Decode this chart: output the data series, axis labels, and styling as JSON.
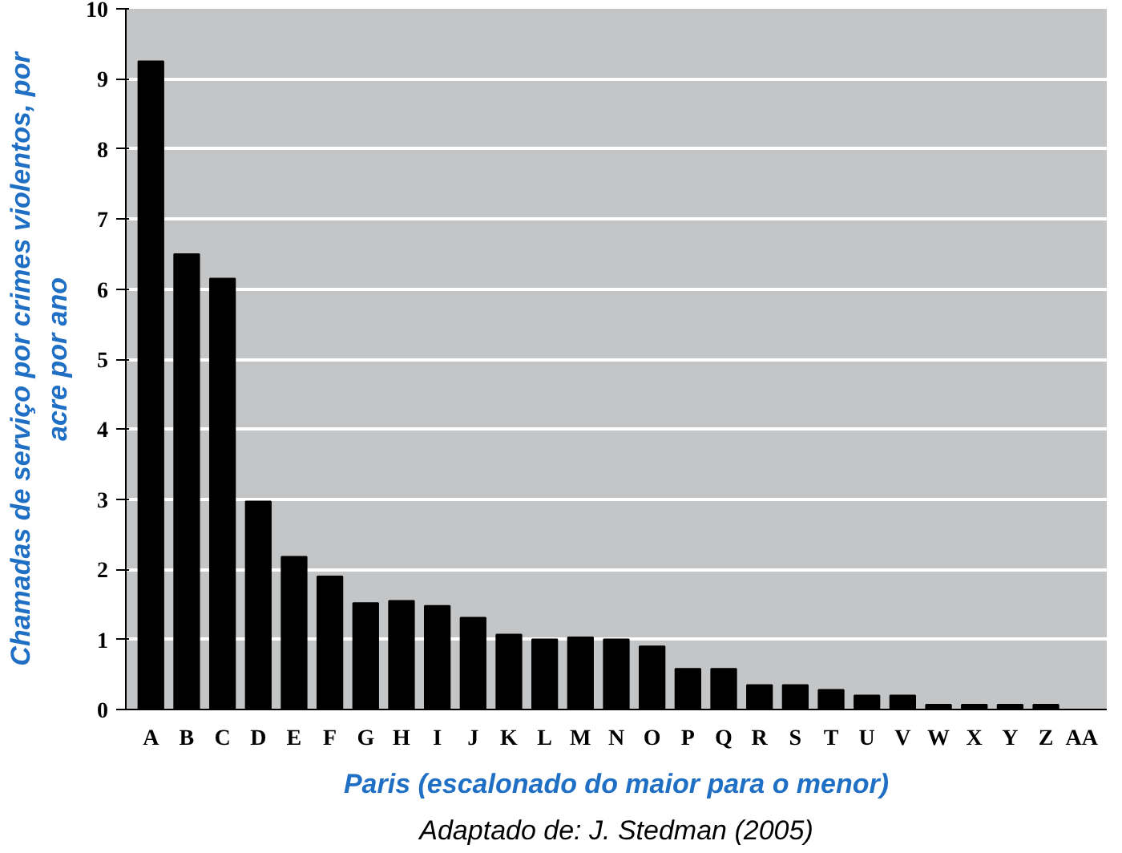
{
  "chart_data": {
    "type": "bar",
    "xlabel": "Paris (escalonado do maior para o menor)",
    "ylabel": "Chamadas de serviço por crimes violentos, por acre por ano",
    "annotations": [
      "Adaptado de: J. Stedman (2005)"
    ],
    "categories": [
      "A",
      "B",
      "C",
      "D",
      "E",
      "F",
      "G",
      "H",
      "I",
      "J",
      "K",
      "L",
      "M",
      "N",
      "O",
      "P",
      "Q",
      "R",
      "S",
      "T",
      "U",
      "V",
      "W",
      "X",
      "Y",
      "Z",
      "AA"
    ],
    "values": [
      9.25,
      6.5,
      6.15,
      2.97,
      2.18,
      1.9,
      1.52,
      1.55,
      1.48,
      1.31,
      1.07,
      1.0,
      1.03,
      1.0,
      0.9,
      0.58,
      0.58,
      0.35,
      0.35,
      0.28,
      0.2,
      0.2,
      0.07,
      0.07,
      0.07,
      0.07,
      null
    ],
    "color": "#000000",
    "ylim": [
      0,
      10
    ],
    "yticks": [
      0,
      1,
      2,
      3,
      4,
      5,
      6,
      7,
      8,
      9,
      10
    ],
    "grid": "y"
  }
}
